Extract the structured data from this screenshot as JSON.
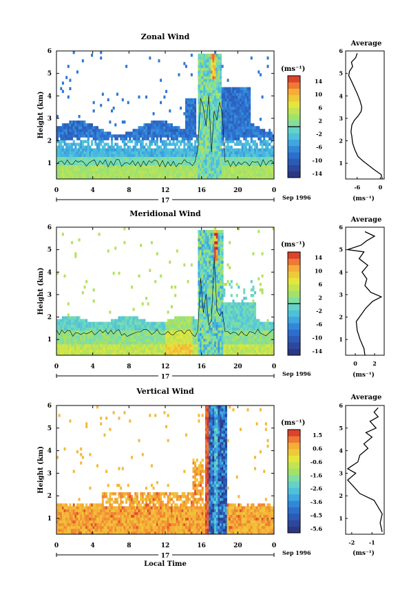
{
  "figure": {
    "xlabel": "Local Time",
    "date_label": "Sep 1996",
    "day_label": "17"
  },
  "chart_data": [
    {
      "type": "heatmap",
      "title": "Zonal Wind",
      "xlabel": "",
      "ylabel": "Height (km)",
      "x_ticks": [
        "0",
        "4",
        "8",
        "12",
        "16",
        "20",
        "0"
      ],
      "y_ticks": [
        "1",
        "2",
        "3",
        "4",
        "5",
        "6"
      ],
      "xlim": [
        0,
        24
      ],
      "ylim": [
        0.3,
        6
      ],
      "colorbar": {
        "unit_label": "(ms⁻¹)",
        "tick_labels": [
          "14",
          "10",
          "6",
          "2",
          "-2",
          "-6",
          "-10",
          "-14"
        ],
        "range": [
          -16,
          16
        ],
        "zero_line": true
      },
      "profile": {
        "title": "Average",
        "xlabel": "(ms⁻¹)",
        "x_ticks": [
          "-6",
          "0"
        ],
        "xlim": [
          -9,
          1
        ],
        "y_ticks": [
          "1",
          "2",
          "3",
          "4",
          "5",
          "6"
        ],
        "points": [
          [
            0.5,
            0.3
          ],
          [
            0.2,
            0.5
          ],
          [
            -1.5,
            0.7
          ],
          [
            -3,
            0.9
          ],
          [
            -4.5,
            1.1
          ],
          [
            -5.8,
            1.3
          ],
          [
            -6.6,
            1.6
          ],
          [
            -7.2,
            1.9
          ],
          [
            -7.4,
            2.2
          ],
          [
            -7.6,
            2.4
          ],
          [
            -7.4,
            2.7
          ],
          [
            -6.8,
            2.9
          ],
          [
            -5.8,
            3.1
          ],
          [
            -5.0,
            3.3
          ],
          [
            -4.8,
            3.5
          ],
          [
            -5.3,
            3.8
          ],
          [
            -6.0,
            4.1
          ],
          [
            -6.8,
            4.4
          ],
          [
            -7.6,
            4.7
          ],
          [
            -8.2,
            4.9
          ],
          [
            -8.0,
            5.1
          ],
          [
            -7.2,
            5.3
          ],
          [
            -7.5,
            5.5
          ],
          [
            -6.4,
            5.7
          ],
          [
            -6.0,
            5.9
          ]
        ]
      }
    },
    {
      "type": "heatmap",
      "title": "Meridional Wind",
      "xlabel": "",
      "ylabel": "Height (km)",
      "x_ticks": [
        "0",
        "4",
        "8",
        "12",
        "16",
        "20",
        "0"
      ],
      "y_ticks": [
        "1",
        "2",
        "3",
        "4",
        "5",
        "6"
      ],
      "xlim": [
        0,
        24
      ],
      "ylim": [
        0.3,
        6
      ],
      "colorbar": {
        "unit_label": "(ms⁻¹)",
        "tick_labels": [
          "14",
          "10",
          "6",
          "2",
          "-2",
          "-6",
          "-10",
          "-14"
        ],
        "range": [
          -16,
          16
        ],
        "zero_line": true
      },
      "profile": {
        "title": "Average",
        "xlabel": "(ms⁻¹)",
        "x_ticks": [
          "0",
          "2"
        ],
        "xlim": [
          -1,
          3
        ],
        "y_ticks": [
          "1",
          "2",
          "3",
          "4",
          "5",
          "6"
        ],
        "points": [
          [
            1.0,
            0.3
          ],
          [
            0.9,
            0.6
          ],
          [
            0.5,
            1.0
          ],
          [
            0.2,
            1.4
          ],
          [
            0.1,
            1.8
          ],
          [
            0.6,
            2.1
          ],
          [
            1.1,
            2.4
          ],
          [
            1.8,
            2.7
          ],
          [
            2.7,
            2.9
          ],
          [
            1.6,
            3.1
          ],
          [
            1.0,
            3.4
          ],
          [
            1.2,
            3.7
          ],
          [
            0.7,
            4.0
          ],
          [
            1.3,
            4.3
          ],
          [
            0.4,
            4.6
          ],
          [
            0.9,
            4.9
          ],
          [
            -0.8,
            5.0
          ],
          [
            0.6,
            5.2
          ],
          [
            1.2,
            5.4
          ],
          [
            2.0,
            5.6
          ],
          [
            1.0,
            5.8
          ]
        ]
      }
    },
    {
      "type": "heatmap",
      "title": "Vertical Wind",
      "xlabel": "Local Time",
      "ylabel": "Height (km)",
      "x_ticks": [
        "0",
        "4",
        "8",
        "12",
        "16",
        "20",
        "0"
      ],
      "y_ticks": [
        "1",
        "2",
        "3",
        "4",
        "5",
        "6"
      ],
      "xlim": [
        0,
        24
      ],
      "ylim": [
        0.3,
        6
      ],
      "colorbar": {
        "unit_label": "(ms⁻¹)",
        "tick_labels": [
          "1.5",
          "0.6",
          "-0.6",
          "-1.6",
          "-2.6",
          "-3.6",
          "-4.5",
          "-5.6"
        ],
        "range": [
          -6.2,
          2.0
        ],
        "zero_line": false
      },
      "profile": {
        "title": "Average",
        "xlabel": "(ms⁻¹)",
        "x_ticks": [
          "-2",
          "-1"
        ],
        "xlim": [
          -2.3,
          -0.4
        ],
        "y_ticks": [
          "1",
          "2",
          "3",
          "4",
          "5",
          "6"
        ],
        "points": [
          [
            -0.5,
            0.4
          ],
          [
            -0.6,
            0.8
          ],
          [
            -0.5,
            1.2
          ],
          [
            -0.7,
            1.5
          ],
          [
            -0.9,
            1.8
          ],
          [
            -1.6,
            2.1
          ],
          [
            -1.9,
            2.4
          ],
          [
            -2.2,
            2.7
          ],
          [
            -1.8,
            3.0
          ],
          [
            -2.2,
            3.2
          ],
          [
            -1.7,
            3.5
          ],
          [
            -1.6,
            3.8
          ],
          [
            -1.2,
            4.1
          ],
          [
            -1.4,
            4.3
          ],
          [
            -1.0,
            4.6
          ],
          [
            -1.3,
            4.8
          ],
          [
            -0.8,
            5.0
          ],
          [
            -1.1,
            5.3
          ],
          [
            -0.7,
            5.5
          ],
          [
            -0.9,
            5.7
          ],
          [
            -0.7,
            5.9
          ]
        ]
      }
    }
  ]
}
